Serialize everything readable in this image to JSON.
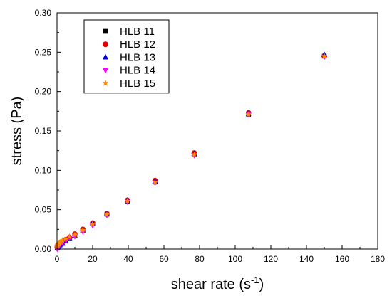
{
  "chart_data": {
    "type": "scatter",
    "xlabel": "shear rate (s",
    "xlabel_sup": "-1",
    "xlabel_close": ")",
    "ylabel": "stress (Pa)",
    "xlim": [
      0,
      180
    ],
    "ylim": [
      0,
      0.3
    ],
    "xticks": [
      0,
      20,
      40,
      60,
      80,
      100,
      120,
      140,
      160,
      180
    ],
    "yticks": [
      0.0,
      0.05,
      0.1,
      0.15,
      0.2,
      0.25,
      0.3
    ],
    "xtick_labels": [
      "0",
      "20",
      "40",
      "60",
      "80",
      "100",
      "120",
      "140",
      "160",
      "180"
    ],
    "ytick_labels": [
      "0.00",
      "0.05",
      "0.10",
      "0.15",
      "0.20",
      "0.25",
      "0.30"
    ],
    "grid": false,
    "legend_position": "top-left",
    "series": [
      {
        "name": "HLB 11",
        "marker": "square",
        "color": "#000000",
        "x": [
          0.1,
          0.3,
          0.6,
          1.0,
          1.5,
          2.1,
          3.0,
          5.0,
          7.0,
          10.0,
          14.5,
          20.0,
          28.0,
          39.5,
          55.0,
          77.0,
          107.5,
          150.0
        ],
        "y": [
          0.001,
          0.002,
          0.003,
          0.004,
          0.005,
          0.006,
          0.007,
          0.01,
          0.013,
          0.017,
          0.023,
          0.032,
          0.044,
          0.06,
          0.085,
          0.12,
          0.17,
          0.245
        ]
      },
      {
        "name": "HLB 12",
        "marker": "circle",
        "color": "#e00000",
        "x": [
          0.1,
          0.3,
          0.6,
          1.0,
          1.5,
          2.1,
          3.0,
          5.0,
          7.0,
          10.0,
          14.5,
          20.0,
          28.0,
          39.5,
          55.0,
          77.0,
          107.5,
          150.0
        ],
        "y": [
          0.002,
          0.004,
          0.005,
          0.006,
          0.007,
          0.008,
          0.009,
          0.012,
          0.015,
          0.019,
          0.025,
          0.033,
          0.045,
          0.062,
          0.087,
          0.122,
          0.173,
          0.245
        ]
      },
      {
        "name": "HLB 13",
        "marker": "triangle-up",
        "color": "#0000cc",
        "x": [
          0.1,
          0.3,
          0.6,
          1.0,
          1.5,
          2.1,
          3.0,
          5.0,
          7.0,
          10.0,
          14.5,
          20.0,
          28.0,
          39.5,
          55.0,
          77.0,
          107.5,
          150.0
        ],
        "y": [
          0.001,
          0.002,
          0.003,
          0.004,
          0.005,
          0.006,
          0.007,
          0.01,
          0.013,
          0.017,
          0.024,
          0.033,
          0.045,
          0.062,
          0.086,
          0.121,
          0.172,
          0.247
        ]
      },
      {
        "name": "HLB 14",
        "marker": "triangle-down",
        "color": "#ff00ff",
        "x": [
          0.1,
          0.3,
          0.6,
          1.0,
          1.5,
          2.1,
          3.0,
          5.0,
          7.0,
          10.0,
          14.5,
          20.0,
          28.0,
          39.5,
          55.0,
          77.0,
          107.5,
          150.0
        ],
        "y": [
          0.0,
          0.001,
          0.002,
          0.003,
          0.005,
          0.006,
          0.008,
          0.011,
          0.014,
          0.016,
          0.022,
          0.03,
          0.043,
          0.06,
          0.084,
          0.119,
          0.171,
          0.244
        ]
      },
      {
        "name": "HLB 15",
        "marker": "star",
        "color": "#ff8c00",
        "x": [
          0.1,
          0.3,
          0.6,
          1.0,
          1.5,
          2.1,
          3.0,
          5.0,
          7.0,
          10.0,
          14.5,
          20.0,
          28.0,
          39.5,
          55.0,
          77.0,
          107.5,
          150.0
        ],
        "y": [
          0.003,
          0.005,
          0.006,
          0.007,
          0.008,
          0.009,
          0.011,
          0.013,
          0.016,
          0.018,
          0.024,
          0.032,
          0.044,
          0.061,
          0.085,
          0.12,
          0.171,
          0.245
        ]
      }
    ]
  }
}
